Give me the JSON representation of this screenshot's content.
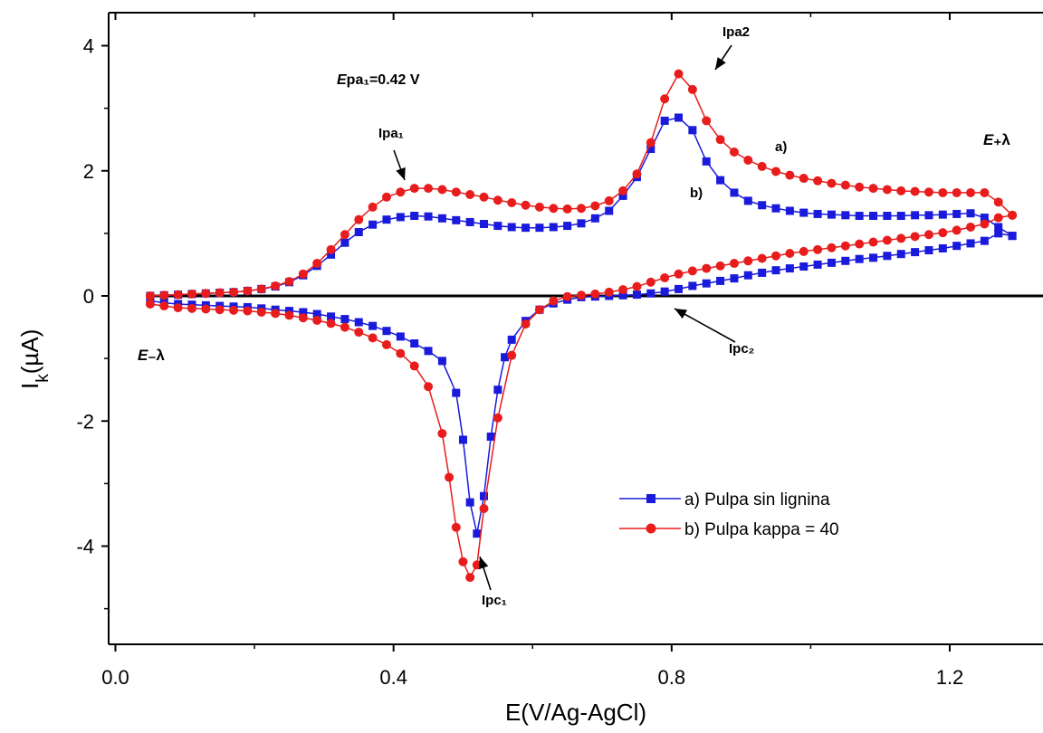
{
  "chart_data": {
    "type": "line",
    "title": "",
    "xlabel": "E(V/Ag-AgCl)",
    "ylabel": "I",
    "ylabel_sub": "k",
    "ylabel_tail": "(µA)",
    "xlim": [
      0.0,
      1.33
    ],
    "ylim": [
      -5.3,
      4.5
    ],
    "x_ticks": [
      "0.0",
      "0.4",
      "0.8",
      "1.2"
    ],
    "y_ticks": [
      "4",
      "2",
      "0",
      "-2",
      "-4"
    ],
    "grid": false,
    "legend_position": "bottom-right",
    "series": [
      {
        "name": "a) Pulpa sin lignina",
        "color": "#1a1adc",
        "marker": "square",
        "x": [
          0.05,
          0.07,
          0.09,
          0.11,
          0.13,
          0.15,
          0.17,
          0.19,
          0.21,
          0.23,
          0.25,
          0.27,
          0.29,
          0.31,
          0.33,
          0.35,
          0.37,
          0.39,
          0.41,
          0.43,
          0.45,
          0.47,
          0.49,
          0.51,
          0.53,
          0.55,
          0.57,
          0.59,
          0.61,
          0.63,
          0.65,
          0.67,
          0.69,
          0.71,
          0.73,
          0.75,
          0.77,
          0.79,
          0.81,
          0.83,
          0.85,
          0.87,
          0.89,
          0.91,
          0.93,
          0.95,
          0.97,
          0.99,
          1.01,
          1.03,
          1.05,
          1.07,
          1.09,
          1.11,
          1.13,
          1.15,
          1.17,
          1.19,
          1.21,
          1.23,
          1.25,
          1.27,
          1.29,
          1.29,
          1.27,
          1.25,
          1.23,
          1.21,
          1.19,
          1.17,
          1.15,
          1.13,
          1.11,
          1.09,
          1.07,
          1.05,
          1.03,
          1.01,
          0.99,
          0.97,
          0.95,
          0.93,
          0.91,
          0.89,
          0.87,
          0.85,
          0.83,
          0.81,
          0.79,
          0.77,
          0.75,
          0.73,
          0.71,
          0.69,
          0.67,
          0.65,
          0.63,
          0.61,
          0.59,
          0.57,
          0.56,
          0.55,
          0.54,
          0.53,
          0.52,
          0.51,
          0.5,
          0.49,
          0.47,
          0.45,
          0.43,
          0.41,
          0.39,
          0.37,
          0.35,
          0.33,
          0.31,
          0.29,
          0.27,
          0.25,
          0.23,
          0.21,
          0.19,
          0.17,
          0.15,
          0.13,
          0.11,
          0.09,
          0.07,
          0.05
        ],
        "y": [
          0.0,
          0.01,
          0.02,
          0.03,
          0.04,
          0.05,
          0.06,
          0.08,
          0.11,
          0.15,
          0.22,
          0.33,
          0.48,
          0.66,
          0.85,
          1.02,
          1.14,
          1.22,
          1.26,
          1.28,
          1.27,
          1.24,
          1.21,
          1.18,
          1.15,
          1.12,
          1.1,
          1.09,
          1.09,
          1.1,
          1.12,
          1.16,
          1.24,
          1.36,
          1.6,
          1.9,
          2.35,
          2.8,
          2.85,
          2.65,
          2.15,
          1.85,
          1.65,
          1.52,
          1.45,
          1.4,
          1.36,
          1.33,
          1.31,
          1.3,
          1.29,
          1.28,
          1.28,
          1.28,
          1.28,
          1.29,
          1.29,
          1.3,
          1.31,
          1.32,
          1.25,
          1.1,
          0.96,
          0.96,
          1.0,
          0.88,
          0.84,
          0.8,
          0.76,
          0.73,
          0.7,
          0.67,
          0.64,
          0.61,
          0.59,
          0.56,
          0.53,
          0.5,
          0.47,
          0.44,
          0.41,
          0.37,
          0.33,
          0.28,
          0.24,
          0.2,
          0.16,
          0.11,
          0.07,
          0.04,
          0.02,
          0.01,
          0.0,
          -0.01,
          -0.02,
          -0.06,
          -0.12,
          -0.22,
          -0.4,
          -0.7,
          -0.98,
          -1.5,
          -2.25,
          -3.2,
          -3.8,
          -3.3,
          -2.3,
          -1.55,
          -1.04,
          -0.88,
          -0.76,
          -0.65,
          -0.56,
          -0.48,
          -0.42,
          -0.37,
          -0.33,
          -0.29,
          -0.26,
          -0.24,
          -0.22,
          -0.2,
          -0.18,
          -0.17,
          -0.16,
          -0.15,
          -0.14,
          -0.13,
          -0.11,
          -0.08
        ]
      },
      {
        "name": "b) Pulpa kappa = 40",
        "color": "#e81c1c",
        "marker": "circle",
        "x": [
          0.05,
          0.07,
          0.09,
          0.11,
          0.13,
          0.15,
          0.17,
          0.19,
          0.21,
          0.23,
          0.25,
          0.27,
          0.29,
          0.31,
          0.33,
          0.35,
          0.37,
          0.39,
          0.41,
          0.43,
          0.45,
          0.47,
          0.49,
          0.51,
          0.53,
          0.55,
          0.57,
          0.59,
          0.61,
          0.63,
          0.65,
          0.67,
          0.69,
          0.71,
          0.73,
          0.75,
          0.77,
          0.79,
          0.81,
          0.83,
          0.85,
          0.87,
          0.89,
          0.91,
          0.93,
          0.95,
          0.97,
          0.99,
          1.01,
          1.03,
          1.05,
          1.07,
          1.09,
          1.11,
          1.13,
          1.15,
          1.17,
          1.19,
          1.21,
          1.23,
          1.25,
          1.27,
          1.29,
          1.29,
          1.27,
          1.25,
          1.23,
          1.21,
          1.19,
          1.17,
          1.15,
          1.13,
          1.11,
          1.09,
          1.07,
          1.05,
          1.03,
          1.01,
          0.99,
          0.97,
          0.95,
          0.93,
          0.91,
          0.89,
          0.87,
          0.85,
          0.83,
          0.81,
          0.79,
          0.77,
          0.75,
          0.73,
          0.71,
          0.69,
          0.67,
          0.65,
          0.63,
          0.61,
          0.59,
          0.57,
          0.55,
          0.53,
          0.52,
          0.51,
          0.5,
          0.49,
          0.48,
          0.47,
          0.45,
          0.43,
          0.41,
          0.39,
          0.37,
          0.35,
          0.33,
          0.31,
          0.29,
          0.27,
          0.25,
          0.23,
          0.21,
          0.19,
          0.17,
          0.15,
          0.13,
          0.11,
          0.09,
          0.07,
          0.05
        ],
        "y": [
          0.0,
          0.01,
          0.02,
          0.03,
          0.04,
          0.05,
          0.06,
          0.08,
          0.11,
          0.16,
          0.23,
          0.35,
          0.52,
          0.74,
          0.98,
          1.22,
          1.42,
          1.58,
          1.66,
          1.72,
          1.72,
          1.7,
          1.66,
          1.62,
          1.58,
          1.53,
          1.49,
          1.45,
          1.42,
          1.4,
          1.39,
          1.4,
          1.44,
          1.52,
          1.68,
          1.95,
          2.45,
          3.15,
          3.55,
          3.3,
          2.8,
          2.5,
          2.3,
          2.17,
          2.07,
          1.99,
          1.93,
          1.88,
          1.84,
          1.8,
          1.77,
          1.74,
          1.72,
          1.7,
          1.68,
          1.67,
          1.66,
          1.65,
          1.65,
          1.65,
          1.65,
          1.5,
          1.29,
          1.29,
          1.25,
          1.15,
          1.1,
          1.05,
          1.01,
          0.98,
          0.95,
          0.92,
          0.89,
          0.86,
          0.83,
          0.8,
          0.77,
          0.74,
          0.71,
          0.68,
          0.64,
          0.6,
          0.56,
          0.52,
          0.48,
          0.44,
          0.4,
          0.35,
          0.29,
          0.22,
          0.15,
          0.1,
          0.06,
          0.03,
          0.01,
          -0.01,
          -0.08,
          -0.22,
          -0.45,
          -0.95,
          -1.95,
          -3.4,
          -4.3,
          -4.5,
          -4.25,
          -3.7,
          -2.9,
          -2.2,
          -1.45,
          -1.12,
          -0.92,
          -0.78,
          -0.67,
          -0.58,
          -0.5,
          -0.44,
          -0.39,
          -0.35,
          -0.31,
          -0.28,
          -0.26,
          -0.24,
          -0.23,
          -0.22,
          -0.21,
          -0.2,
          -0.19,
          -0.16,
          -0.13
        ]
      }
    ],
    "annotations": {
      "epa": "Epa₁=0.42 V",
      "ipa1": "Ipa₁",
      "ipa2": "Ipa2",
      "ipc1": "Ipc₁",
      "ipc2": "Ipc₂",
      "a": "a)",
      "b": "b)",
      "e_plus": "E₊λ",
      "e_minus": "E₋λ"
    }
  }
}
